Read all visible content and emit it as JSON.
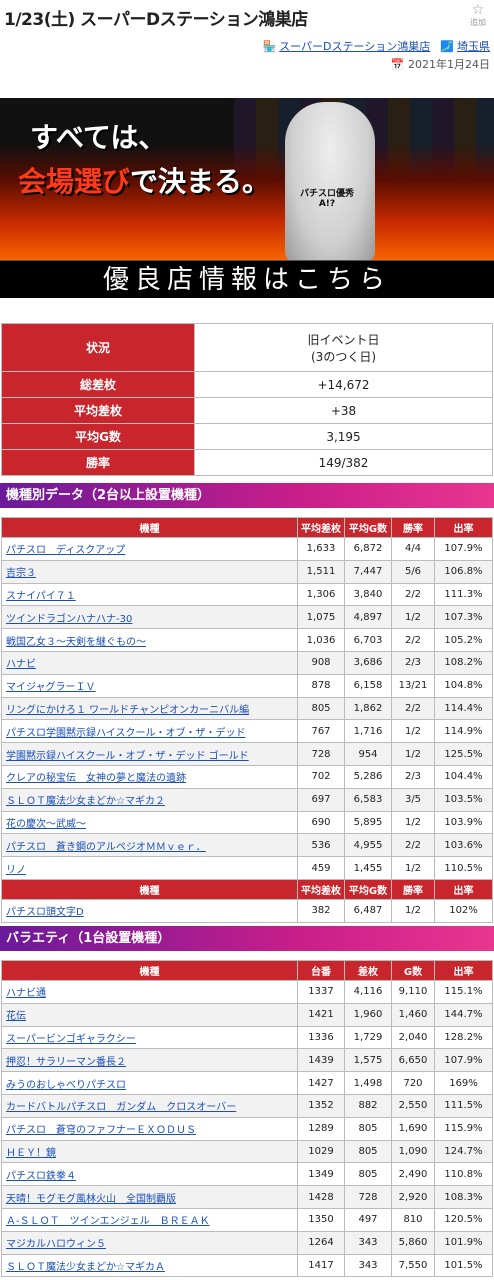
{
  "header": {
    "title": "1/23(土) スーパーDステーション鴻巣店",
    "favorite_label": "追加",
    "store_link": "スーパーDステーション鴻巣店",
    "pref_link": "埼玉県",
    "date": "2021年1月24日"
  },
  "banner": {
    "line1": "すべては、",
    "line2a": "会場選び",
    "line2b": "で決まる。",
    "jacket_text": "パチスロ優秀A!?",
    "caption": "優良店情報はこちら"
  },
  "summary": {
    "rows": [
      {
        "label": "状況",
        "value": "旧イベント日\n(3のつく日)"
      },
      {
        "label": "総差枚",
        "value": "+14,672"
      },
      {
        "label": "平均差枚",
        "value": "+38"
      },
      {
        "label": "平均G数",
        "value": "3,195"
      },
      {
        "label": "勝率",
        "value": "149/382"
      }
    ]
  },
  "section1": {
    "title": "機種別データ（2台以上設置機種）",
    "headers": [
      "機種",
      "平均差枚",
      "平均G数",
      "勝率",
      "出率"
    ],
    "rows": [
      [
        "パチスロ　ディスクアップ",
        "1,633",
        "6,872",
        "4/4",
        "107.9%"
      ],
      [
        "吉宗３",
        "1,511",
        "7,447",
        "5/6",
        "106.8%"
      ],
      [
        "スナイパイ７１",
        "1,306",
        "3,840",
        "2/2",
        "111.3%"
      ],
      [
        "ツインドラゴンハナハナ-30",
        "1,075",
        "4,897",
        "1/2",
        "107.3%"
      ],
      [
        "戦国乙女３～天剣を継ぐもの～",
        "1,036",
        "6,703",
        "2/2",
        "105.2%"
      ],
      [
        "ハナビ",
        "908",
        "3,686",
        "2/3",
        "108.2%"
      ],
      [
        "マイジャグラーＩＶ",
        "878",
        "6,158",
        "13/21",
        "104.8%"
      ],
      [
        "リングにかけろ１ ワールドチャンピオンカーニバル編",
        "805",
        "1,862",
        "2/2",
        "114.4%"
      ],
      [
        "パチスロ学園黙示録ハイスクール・オブ・ザ・デッド",
        "767",
        "1,716",
        "1/2",
        "114.9%"
      ],
      [
        "学園黙示録ハイスクール・オブ・ザ・デッド ゴールド",
        "728",
        "954",
        "1/2",
        "125.5%"
      ],
      [
        "クレアの秘宝伝　女神の夢と魔法の遺跡",
        "702",
        "5,286",
        "2/3",
        "104.4%"
      ],
      [
        "ＳＬＯＴ魔法少女まどか☆マギカ２",
        "697",
        "6,583",
        "3/5",
        "103.5%"
      ],
      [
        "花の慶次～武威～",
        "690",
        "5,895",
        "1/2",
        "103.9%"
      ],
      [
        "パチスロ　蒼き鋼のアルペジオＭＭｖｅｒ．",
        "536",
        "4,955",
        "2/2",
        "103.6%"
      ],
      [
        "リノ",
        "459",
        "1,455",
        "1/2",
        "110.5%"
      ]
    ],
    "headers2": [
      "機種",
      "平均差枚",
      "平均G数",
      "勝率",
      "出率"
    ],
    "rows2": [
      [
        "パチスロ頭文字D",
        "382",
        "6,487",
        "1/2",
        "102%"
      ]
    ]
  },
  "section2": {
    "title": "バラエティ（1台設置機種）",
    "headers": [
      "機種",
      "台番",
      "差枚",
      "G数",
      "出率"
    ],
    "rows": [
      [
        "ハナビ通",
        "1337",
        "4,116",
        "9,110",
        "115.1%"
      ],
      [
        "花伝",
        "1421",
        "1,960",
        "1,460",
        "144.7%"
      ],
      [
        "スーパービンゴギャラクシー",
        "1336",
        "1,729",
        "2,040",
        "128.2%"
      ],
      [
        "押忍！サラリーマン番長２",
        "1439",
        "1,575",
        "6,650",
        "107.9%"
      ],
      [
        "みうのおしゃべりパチスロ",
        "1427",
        "1,498",
        "720",
        "169%"
      ],
      [
        "カードバトルパチスロ　ガンダム　クロスオーバー",
        "1352",
        "882",
        "2,550",
        "111.5%"
      ],
      [
        "パチスロ　蒼穹のファフナーＥＸＯＤＵＳ",
        "1289",
        "805",
        "1,690",
        "115.9%"
      ],
      [
        "ＨＥＹ！鏡",
        "1029",
        "805",
        "1,090",
        "124.7%"
      ],
      [
        "パチスロ鉄拳４",
        "1349",
        "805",
        "2,490",
        "110.8%"
      ],
      [
        "天晴！モグモグ風林火山　全国制覇版",
        "1428",
        "728",
        "2,920",
        "108.3%"
      ],
      [
        "Ａ-ＳＬＯＴ　ツインエンジェル　ＢＲＥＡＫ",
        "1350",
        "497",
        "810",
        "120.5%"
      ],
      [
        "マジカルハロウィン５",
        "1264",
        "343",
        "5,860",
        "101.9%"
      ],
      [
        "ＳＬＯＴ魔法少女まどか☆マギカＡ",
        "1417",
        "343",
        "7,550",
        "101.5%"
      ]
    ]
  }
}
